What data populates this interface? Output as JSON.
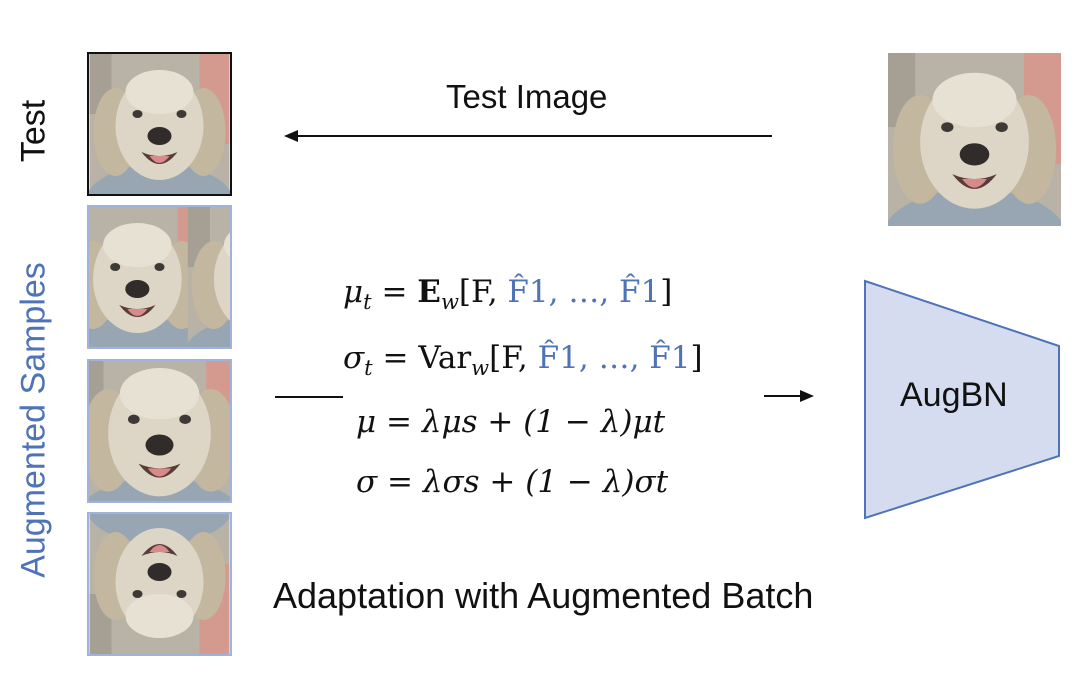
{
  "labels": {
    "test": "Test",
    "augmented_samples": "Augmented Samples",
    "test_image": "Test Image",
    "caption": "Adaptation with Augmented Batch",
    "module": "AugBN"
  },
  "colors": {
    "accent_blue": "#4f73b7",
    "module_fill": "#d6dcef",
    "module_stroke": "#4f73b7",
    "thumb_border_blue": "#9fb3dd",
    "thumb_border_black": "#111111"
  },
  "equations": {
    "mu_t": {
      "lhs": "μ",
      "sub": "t",
      "op": "E",
      "opsub": "w",
      "open": "[F, ",
      "hl": "F̂1, …, F̂1",
      "close": "]"
    },
    "sigma_t": {
      "lhs": "σ",
      "sub": "t",
      "op": "Var",
      "opsub": "w",
      "open": "[F, ",
      "hl": "F̂1, …, F̂1",
      "close": "]"
    },
    "mu": "μ = λμs + (1 − λ)μt",
    "sigma": "σ = λσs + (1 − λ)σt"
  },
  "thumbnails": [
    {
      "role": "test",
      "icon": "dog-face-icon"
    },
    {
      "role": "augmented-mirrored",
      "icon": "dog-face-icon"
    },
    {
      "role": "augmented-cropped",
      "icon": "dog-face-icon"
    },
    {
      "role": "augmented-flipped",
      "icon": "dog-face-icon"
    },
    {
      "role": "source",
      "icon": "dog-face-icon"
    }
  ]
}
